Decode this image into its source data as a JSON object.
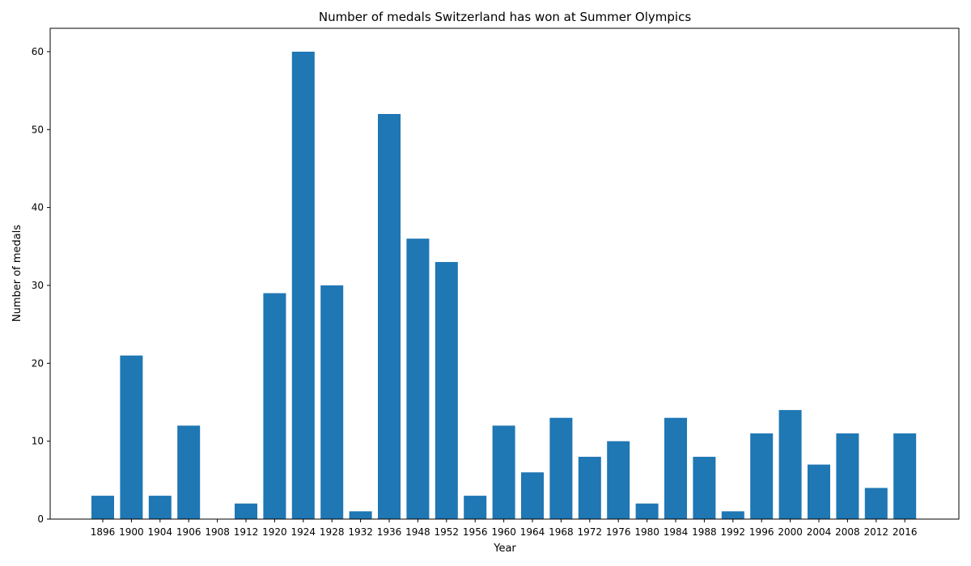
{
  "chart_data": {
    "type": "bar",
    "title": "Number of medals Switzerland has won at Summer Olympics",
    "xlabel": "Year",
    "ylabel": "Number of medals",
    "categories": [
      "1896",
      "1900",
      "1904",
      "1906",
      "1908",
      "1912",
      "1920",
      "1924",
      "1928",
      "1932",
      "1936",
      "1948",
      "1952",
      "1956",
      "1960",
      "1964",
      "1968",
      "1972",
      "1976",
      "1980",
      "1984",
      "1988",
      "1992",
      "1996",
      "2000",
      "2004",
      "2008",
      "2012",
      "2016"
    ],
    "values": [
      3,
      21,
      3,
      12,
      0,
      2,
      29,
      60,
      30,
      1,
      52,
      36,
      33,
      3,
      12,
      6,
      13,
      8,
      10,
      2,
      13,
      8,
      1,
      11,
      14,
      7,
      11,
      4,
      11
    ],
    "ylim": [
      0,
      63
    ],
    "yticks": [
      0,
      10,
      20,
      30,
      40,
      50,
      60
    ],
    "bar_color": "#1f77b4",
    "grid": false,
    "legend": "none"
  }
}
